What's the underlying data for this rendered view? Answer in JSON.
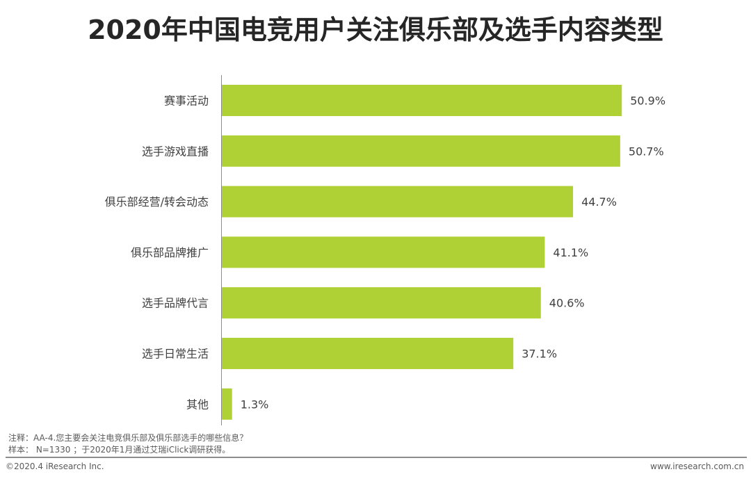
{
  "header": {
    "title": "2020年中国电竞用户关注俱乐部及选手内容类型"
  },
  "chart_data": {
    "type": "bar",
    "orientation": "horizontal",
    "title": "2020年中国电竞用户关注俱乐部及选手内容类型",
    "categories": [
      "赛事活动",
      "选手游戏直播",
      "俱乐部经营/转会动态",
      "俱乐部品牌推广",
      "选手品牌代言",
      "选手日常生活",
      "其他"
    ],
    "values": [
      50.9,
      50.7,
      44.7,
      41.1,
      40.6,
      37.1,
      1.3
    ],
    "value_labels": [
      "50.9%",
      "50.7%",
      "44.7%",
      "41.1%",
      "40.6%",
      "37.1%",
      "1.3%"
    ],
    "xlim": [
      0,
      60
    ],
    "bar_color": "#b0d136",
    "grid": false,
    "legend": "none"
  },
  "notes": {
    "note": "注释：AA-4.您主要会关注电竞俱乐部及俱乐部选手的哪些信息？",
    "sample": "样本： N=1330 ；于2020年1月通过艾瑞iClick调研获得。"
  },
  "footer": {
    "copyright": "©2020.4 iResearch Inc.",
    "website": "www.iresearch.com.cn"
  }
}
